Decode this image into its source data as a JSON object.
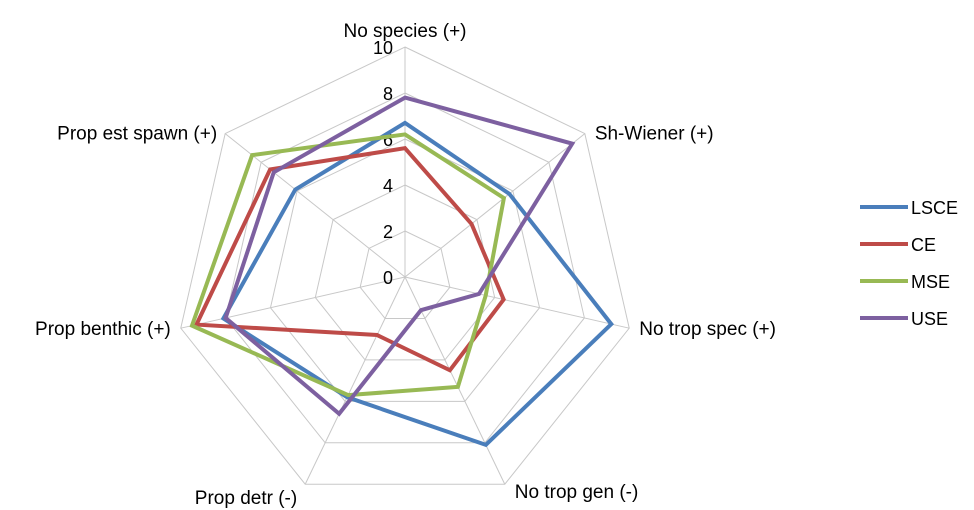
{
  "chart_data": {
    "type": "radar",
    "title": "",
    "axes": [
      "No species (+)",
      "Sh-Wiener (+)",
      "No trop spec (+)",
      "No trop gen (-)",
      "Prop detr (-)",
      "Prop benthic (+)",
      "Prop est spawn (+)"
    ],
    "ticks": [
      "0",
      "2",
      "4",
      "6",
      "8",
      "10"
    ],
    "rlim": [
      0,
      10
    ],
    "grid": true,
    "legend_position": "right",
    "series": [
      {
        "name": "LSCE",
        "color": "#4A7EBB",
        "values": [
          6.7,
          5.8,
          9.2,
          8.1,
          5.8,
          8.1,
          6.1
        ]
      },
      {
        "name": "CE",
        "color": "#BE4B48",
        "values": [
          5.6,
          3.7,
          4.4,
          4.5,
          2.8,
          9.3,
          7.5
        ]
      },
      {
        "name": "MSE",
        "color": "#98B954",
        "values": [
          6.2,
          5.5,
          3.6,
          5.3,
          5.7,
          9.5,
          8.5
        ]
      },
      {
        "name": "USE",
        "color": "#7D60A0",
        "values": [
          7.8,
          9.3,
          3.3,
          1.6,
          6.6,
          8.0,
          7.3
        ]
      }
    ]
  }
}
